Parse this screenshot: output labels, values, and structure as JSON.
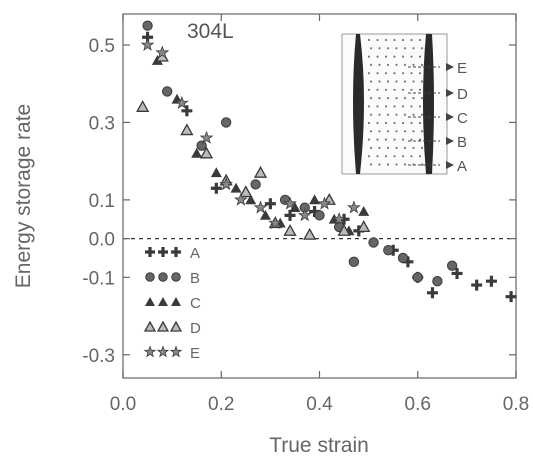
{
  "chart_data": {
    "type": "scatter",
    "xlabel": "True strain",
    "ylabel": "Energy storage rate",
    "annotation": "304L",
    "xlim": [
      0.0,
      0.8
    ],
    "ylim": [
      -0.36,
      0.58
    ],
    "x_ticks": [
      {
        "value": 0.0,
        "label": "0.0"
      },
      {
        "value": 0.2,
        "label": "0.2"
      },
      {
        "value": 0.4,
        "label": "0.4"
      },
      {
        "value": 0.6,
        "label": "0.6"
      },
      {
        "value": 0.8,
        "label": "0.8"
      }
    ],
    "y_ticks": [
      {
        "value": 0.5,
        "label": "0.5"
      },
      {
        "value": 0.3,
        "label": "0.3"
      },
      {
        "value": 0.1,
        "label": "0.1"
      },
      {
        "value": 0.0,
        "label": "0.0"
      },
      {
        "value": -0.1,
        "label": "-0.1"
      },
      {
        "value": -0.3,
        "label": "-0.3"
      }
    ],
    "zero_line": true,
    "grid": false,
    "legend_position": "bottom-left",
    "series": [
      {
        "name": "A",
        "marker": "cross",
        "x": [
          0.05,
          0.13,
          0.19,
          0.3,
          0.34,
          0.39,
          0.45,
          0.48,
          0.55,
          0.58,
          0.6,
          0.63,
          0.68,
          0.72,
          0.75,
          0.79
        ],
        "y": [
          0.52,
          0.33,
          0.13,
          0.09,
          0.06,
          0.07,
          0.05,
          0.02,
          -0.03,
          -0.06,
          -0.1,
          -0.14,
          -0.09,
          -0.12,
          -0.11,
          -0.15
        ]
      },
      {
        "name": "B",
        "marker": "circle",
        "x": [
          0.05,
          0.09,
          0.16,
          0.21,
          0.27,
          0.33,
          0.37,
          0.4,
          0.44,
          0.47,
          0.51,
          0.54,
          0.57,
          0.6,
          0.64,
          0.67
        ],
        "y": [
          0.55,
          0.38,
          0.24,
          0.3,
          0.14,
          0.1,
          0.08,
          0.06,
          0.03,
          -0.06,
          -0.01,
          -0.03,
          -0.05,
          -0.1,
          -0.11,
          -0.07
        ]
      },
      {
        "name": "C",
        "marker": "triangle-filled",
        "x": [
          0.07,
          0.11,
          0.15,
          0.19,
          0.23,
          0.26,
          0.29,
          0.32,
          0.35,
          0.39,
          0.43,
          0.46,
          0.49
        ],
        "y": [
          0.46,
          0.36,
          0.22,
          0.17,
          0.13,
          0.1,
          0.06,
          0.04,
          0.08,
          0.1,
          0.05,
          0.02,
          0.07
        ]
      },
      {
        "name": "D",
        "marker": "triangle-open",
        "x": [
          0.04,
          0.08,
          0.13,
          0.17,
          0.21,
          0.25,
          0.28,
          0.31,
          0.34,
          0.38,
          0.42,
          0.45,
          0.49
        ],
        "y": [
          0.34,
          0.47,
          0.28,
          0.22,
          0.15,
          0.12,
          0.17,
          0.04,
          0.02,
          0.01,
          0.1,
          0.02,
          0.03
        ]
      },
      {
        "name": "E",
        "marker": "star",
        "x": [
          0.05,
          0.08,
          0.12,
          0.17,
          0.21,
          0.24,
          0.28,
          0.31,
          0.34,
          0.37,
          0.41,
          0.44,
          0.47
        ],
        "y": [
          0.5,
          0.48,
          0.35,
          0.26,
          0.14,
          0.1,
          0.08,
          0.04,
          0.09,
          0.06,
          0.09,
          0.05,
          0.08
        ]
      }
    ],
    "inset": {
      "labels": [
        "E",
        "D",
        "C",
        "B",
        "A"
      ]
    }
  }
}
